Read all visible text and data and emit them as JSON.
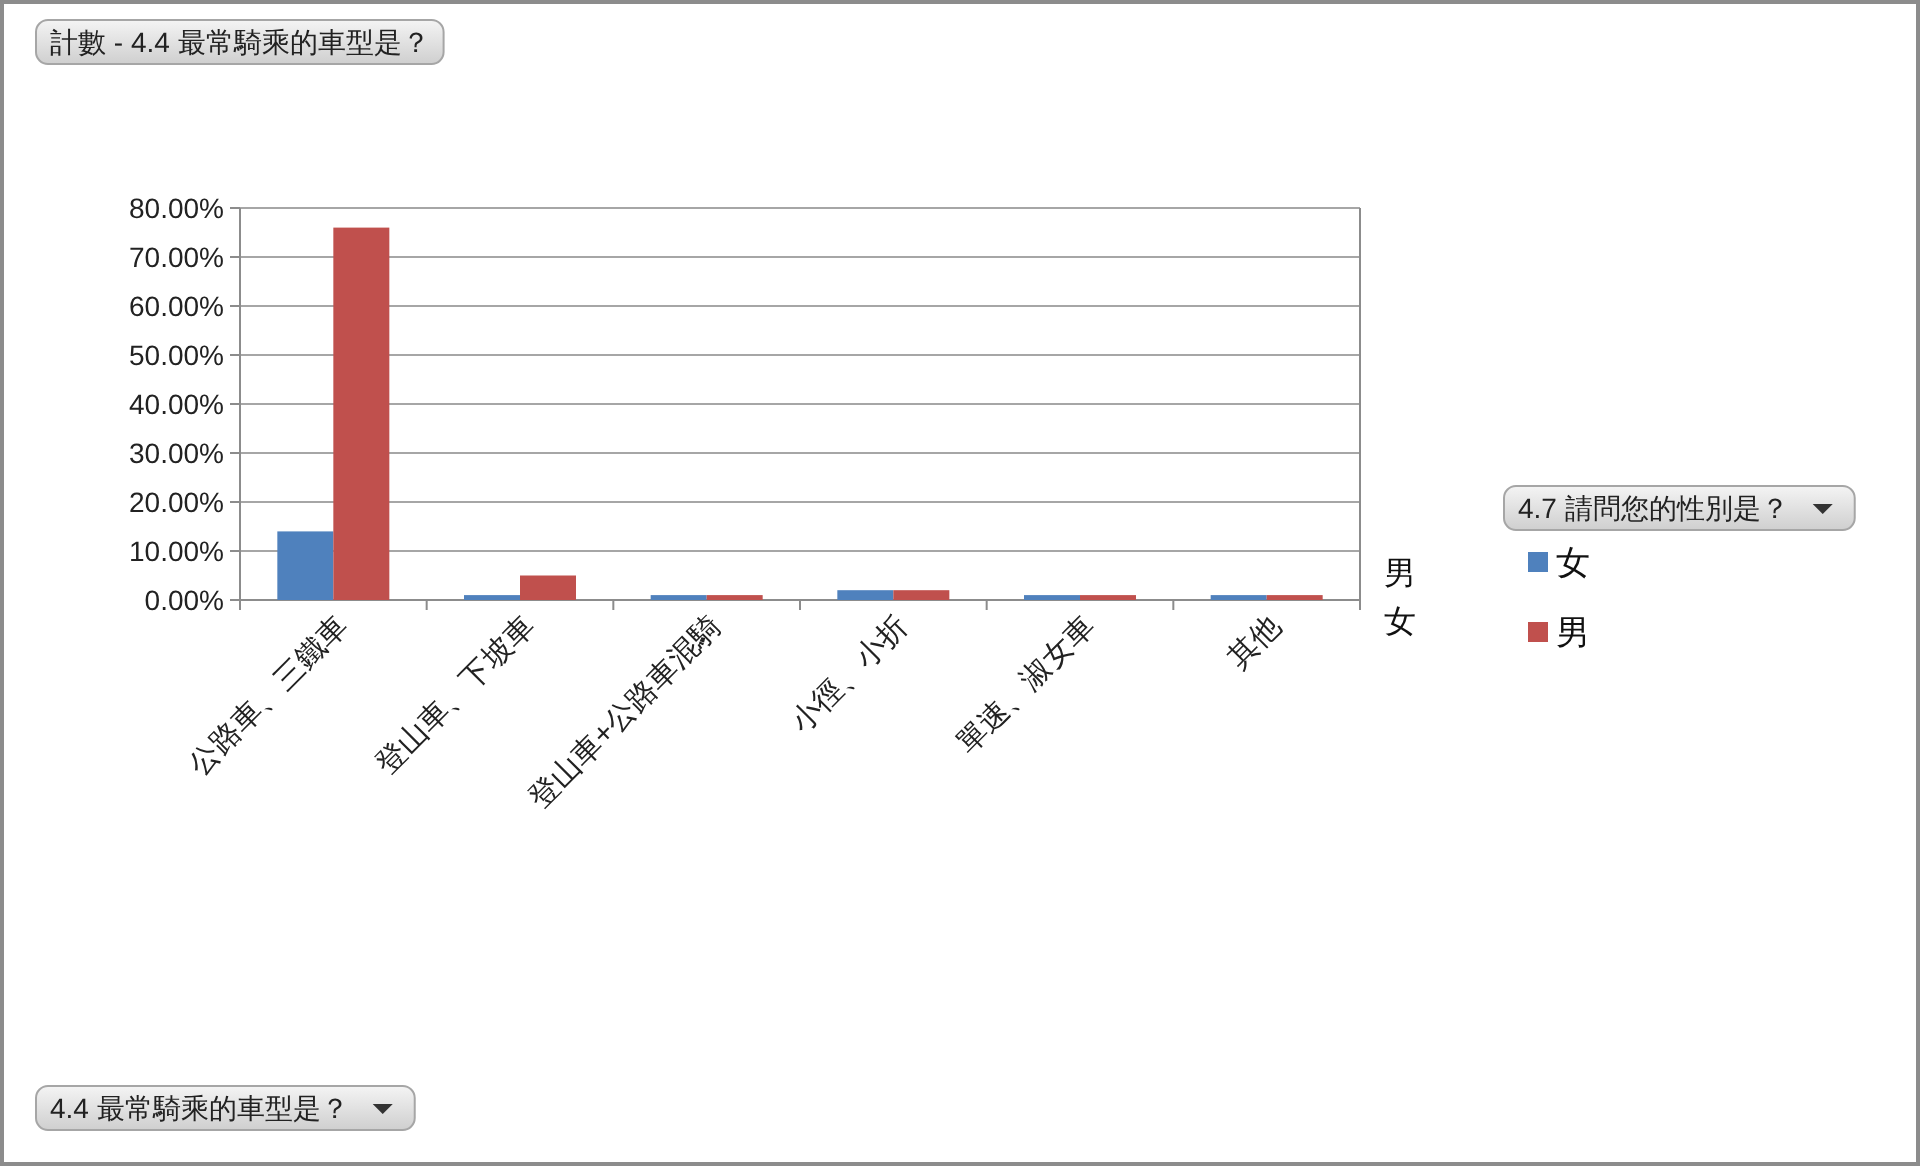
{
  "chart_data": {
    "type": "bar",
    "title": "計數 - 4.4 最常騎乘的車型是？",
    "annotations": [
      "4.4 最常騎乘的車型是？"
    ],
    "legend_title": "4.7 請問您的性別是？",
    "categories": [
      "公路車、三鐵車",
      "登山車、下坡車",
      "登山車+公路車混騎",
      "小徑、小折",
      "單速、淑女車",
      "其他"
    ],
    "series": [
      {
        "name": "女",
        "color": "#4f81bd",
        "values": [
          14,
          1,
          1,
          2,
          1,
          1
        ]
      },
      {
        "name": "男",
        "color": "#c0504d",
        "values": [
          76,
          5,
          1,
          2,
          1,
          1
        ]
      }
    ],
    "ylim": [
      0,
      80
    ],
    "yticks": [
      {
        "value": 0,
        "label": "0.00%"
      },
      {
        "value": 10,
        "label": "10.00%"
      },
      {
        "value": 20,
        "label": "20.00%"
      },
      {
        "value": 30,
        "label": "30.00%"
      },
      {
        "value": 40,
        "label": "40.00%"
      },
      {
        "value": 50,
        "label": "50.00%"
      },
      {
        "value": 60,
        "label": "60.00%"
      },
      {
        "value": 70,
        "label": "70.00%"
      },
      {
        "value": 80,
        "label": "80.00%"
      }
    ],
    "grid": "y",
    "legend": "right"
  }
}
